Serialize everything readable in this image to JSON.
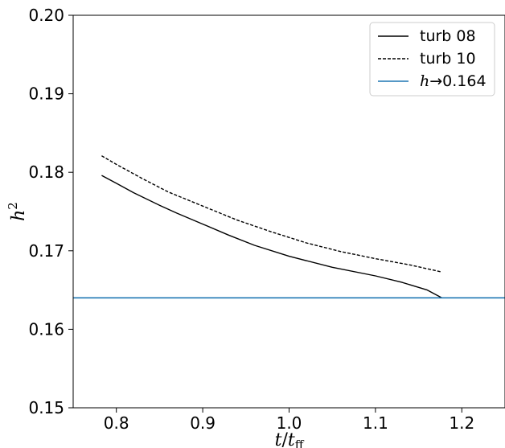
{
  "chart_data": {
    "type": "line",
    "xlabel": {
      "var": "t",
      "sep": "/",
      "base": "t",
      "sub": "ff"
    },
    "ylabel": {
      "var": "h",
      "sup": "2"
    },
    "xlim": [
      0.75,
      1.25
    ],
    "ylim": [
      0.15,
      0.2
    ],
    "xticks": [
      0.8,
      0.9,
      1.0,
      1.1,
      1.2
    ],
    "xtick_labels": [
      "0.8",
      "0.9",
      "1.0",
      "1.1",
      "1.2"
    ],
    "yticks": [
      0.15,
      0.16,
      0.17,
      0.18,
      0.19,
      0.2
    ],
    "ytick_labels": [
      "0.15",
      "0.16",
      "0.17",
      "0.18",
      "0.19",
      "0.20"
    ],
    "grid": false,
    "legend_position": "top-right",
    "series": [
      {
        "name": "turb 08",
        "style": "solid",
        "color": "#000000",
        "x": [
          0.783,
          0.8,
          0.82,
          0.85,
          0.87,
          0.9,
          0.93,
          0.96,
          1.0,
          1.05,
          1.1,
          1.13,
          1.16,
          1.177
        ],
        "y": [
          0.1796,
          0.1786,
          0.1774,
          0.1758,
          0.1748,
          0.1734,
          0.172,
          0.1707,
          0.1693,
          0.1679,
          0.1668,
          0.166,
          0.165,
          0.164
        ]
      },
      {
        "name": "turb 10",
        "style": "dashed",
        "color": "#000000",
        "x": [
          0.783,
          0.8,
          0.83,
          0.86,
          0.9,
          0.94,
          0.98,
          1.02,
          1.06,
          1.1,
          1.14,
          1.177
        ],
        "y": [
          0.1821,
          0.181,
          0.1792,
          0.1775,
          0.1757,
          0.1739,
          0.1724,
          0.171,
          0.1699,
          0.169,
          0.1682,
          0.1673
        ]
      },
      {
        "name": "→0.164",
        "name_prefix": "h",
        "style": "hline",
        "color": "#1f77b4",
        "y": 0.164
      }
    ]
  }
}
